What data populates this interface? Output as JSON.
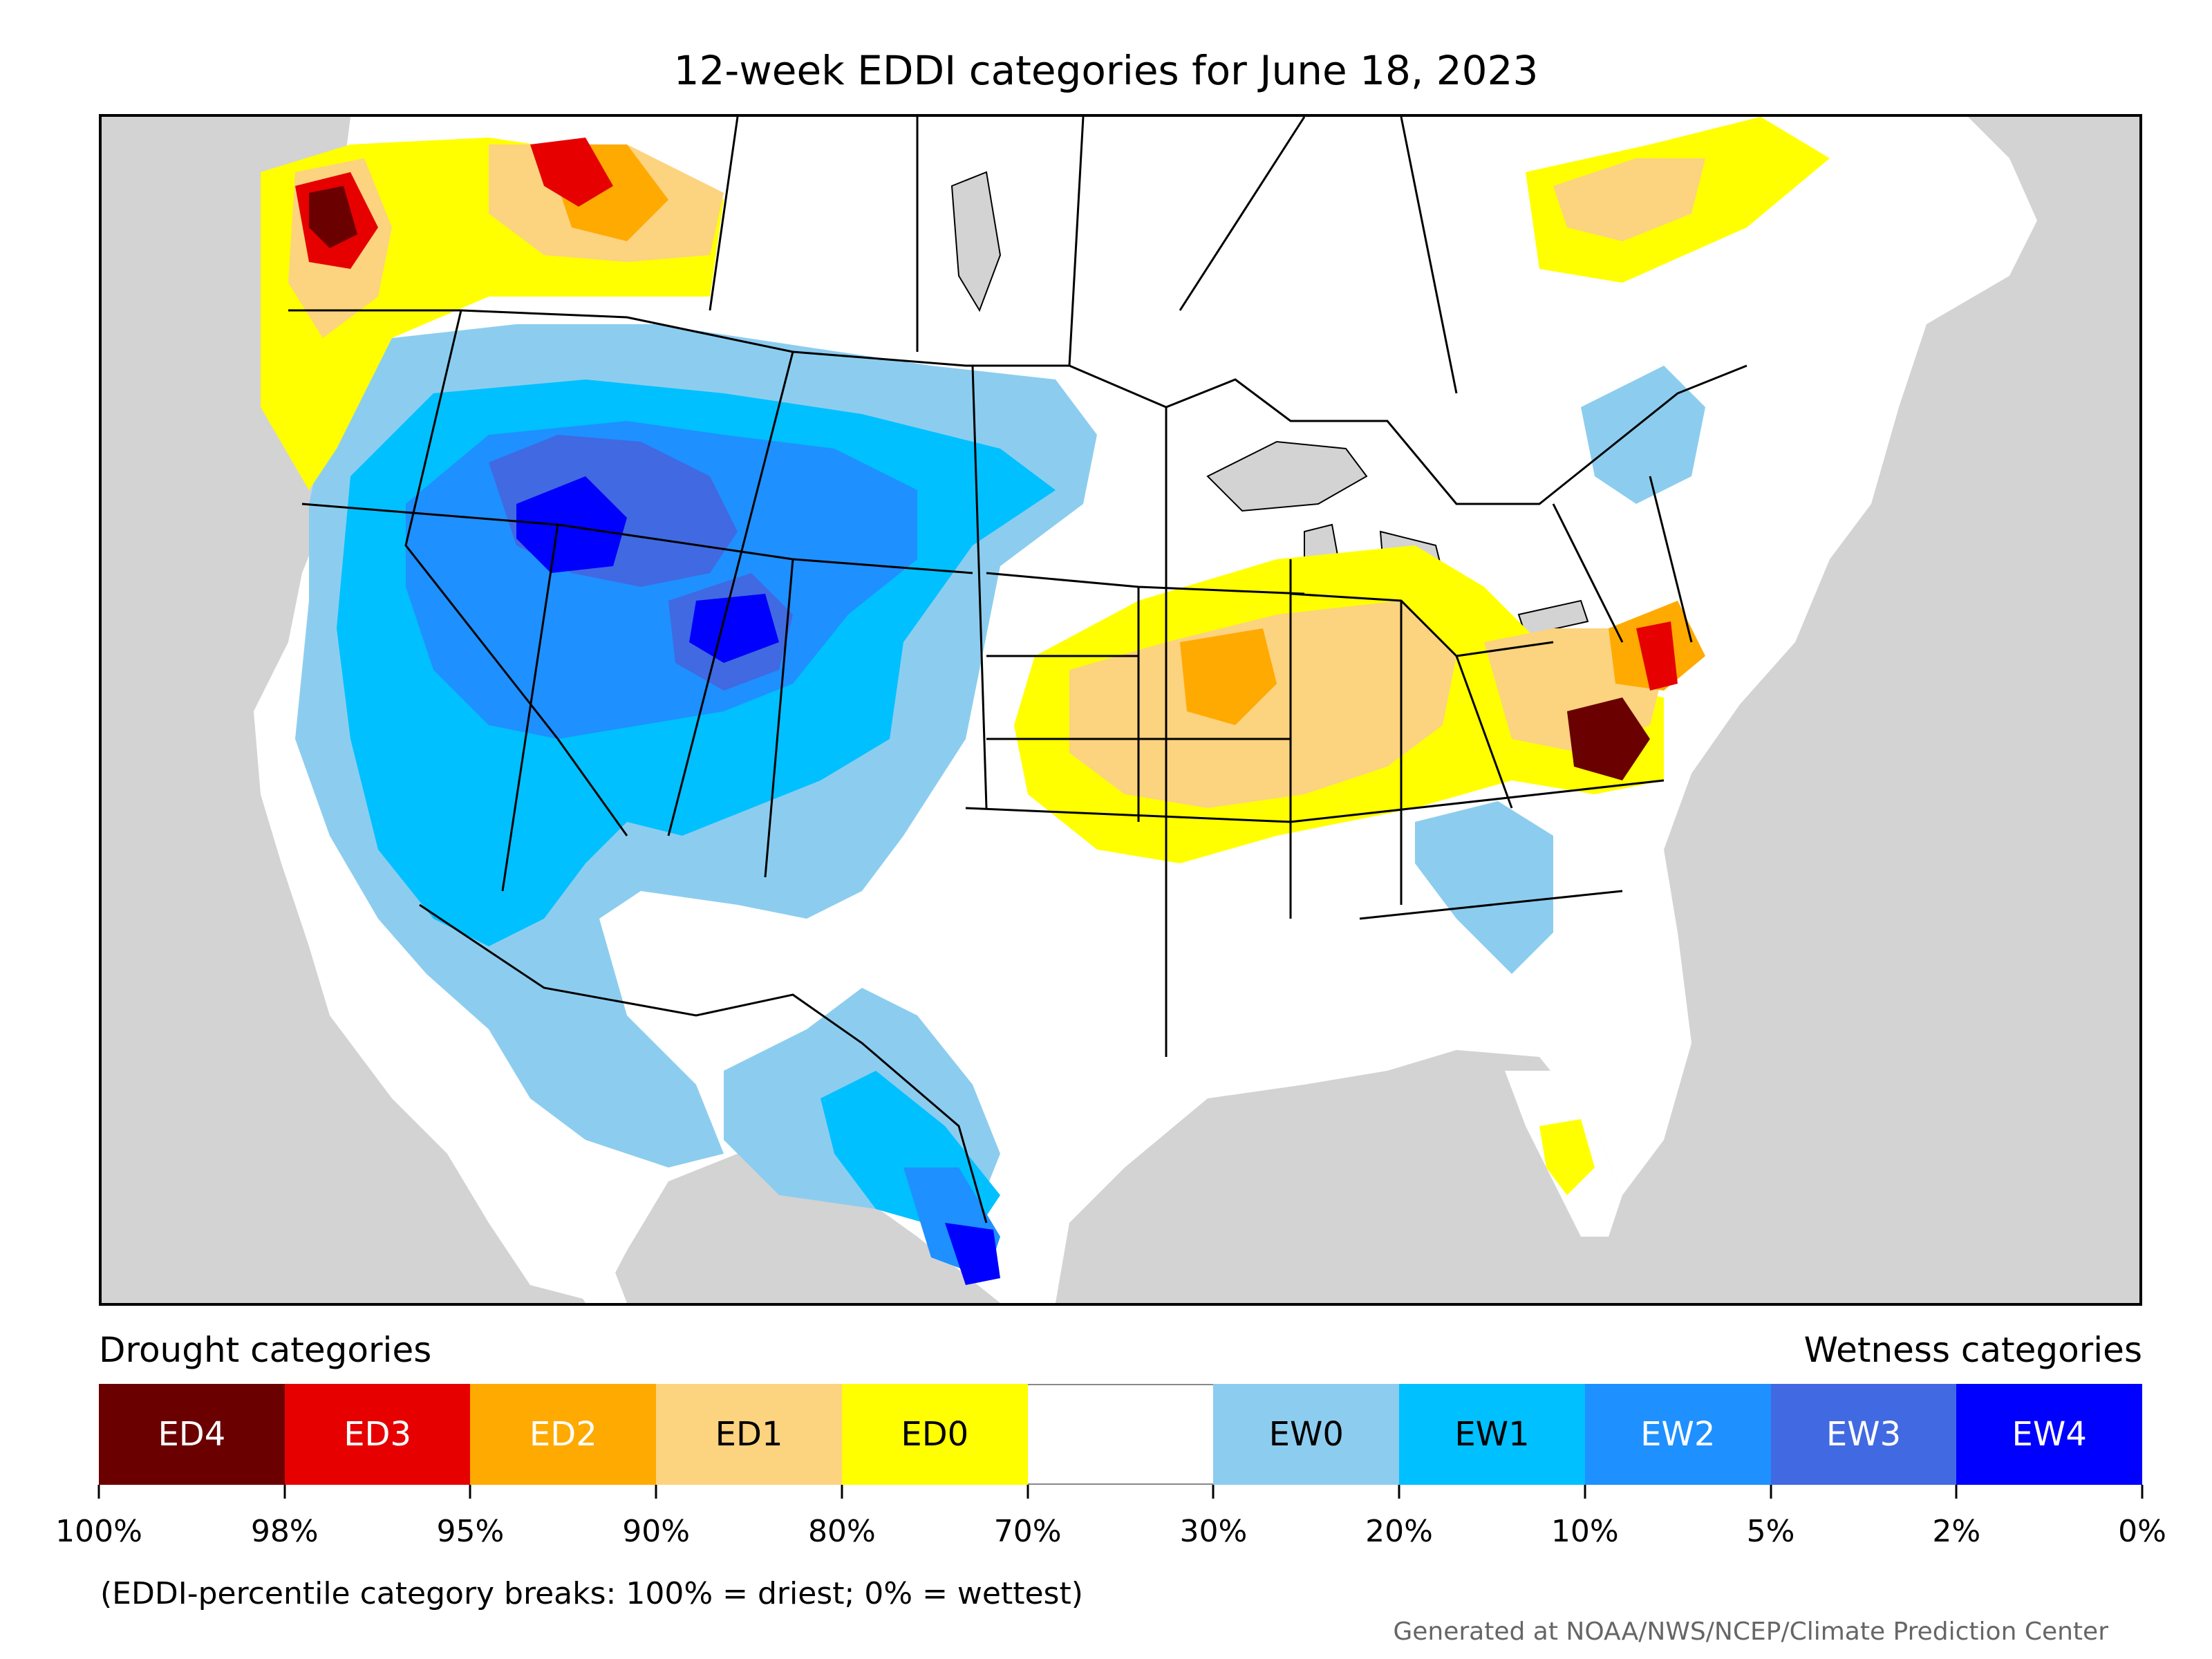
{
  "title": "12-week EDDI categories for June 18, 2023",
  "legend": {
    "drought_heading": "Drought categories",
    "wetness_heading": "Wetness categories",
    "categories": [
      {
        "label": "ED4",
        "color": "#6b0000",
        "text_color": "#ffffff"
      },
      {
        "label": "ED3",
        "color": "#e60000",
        "text_color": "#ffffff"
      },
      {
        "label": "ED2",
        "color": "#ffaa00",
        "text_color": "#ffffff"
      },
      {
        "label": "ED1",
        "color": "#fcd37f",
        "text_color": "#000000"
      },
      {
        "label": "ED0",
        "color": "#ffff00",
        "text_color": "#000000"
      },
      {
        "label": "",
        "color": "#ffffff",
        "text_color": "#000000"
      },
      {
        "label": "EW0",
        "color": "#8ccdef",
        "text_color": "#000000"
      },
      {
        "label": "EW1",
        "color": "#00c0ff",
        "text_color": "#000000"
      },
      {
        "label": "EW2",
        "color": "#1e90ff",
        "text_color": "#ffffff"
      },
      {
        "label": "EW3",
        "color": "#4169e1",
        "text_color": "#ffffff"
      },
      {
        "label": "EW4",
        "color": "#0000ff",
        "text_color": "#ffffff"
      }
    ],
    "ticks": [
      "100%",
      "98%",
      "95%",
      "90%",
      "80%",
      "70%",
      "30%",
      "20%",
      "10%",
      "5%",
      "2%",
      "0%"
    ]
  },
  "footnote": "(EDDI-percentile category breaks: 100% = driest; 0% = wettest)",
  "credit": "Generated at NOAA/NWS/NCEP/Climate Prediction Center",
  "map": {
    "ocean_color": "#d3d3d3",
    "land_color": "#ffffff",
    "border_color": "#000000"
  }
}
